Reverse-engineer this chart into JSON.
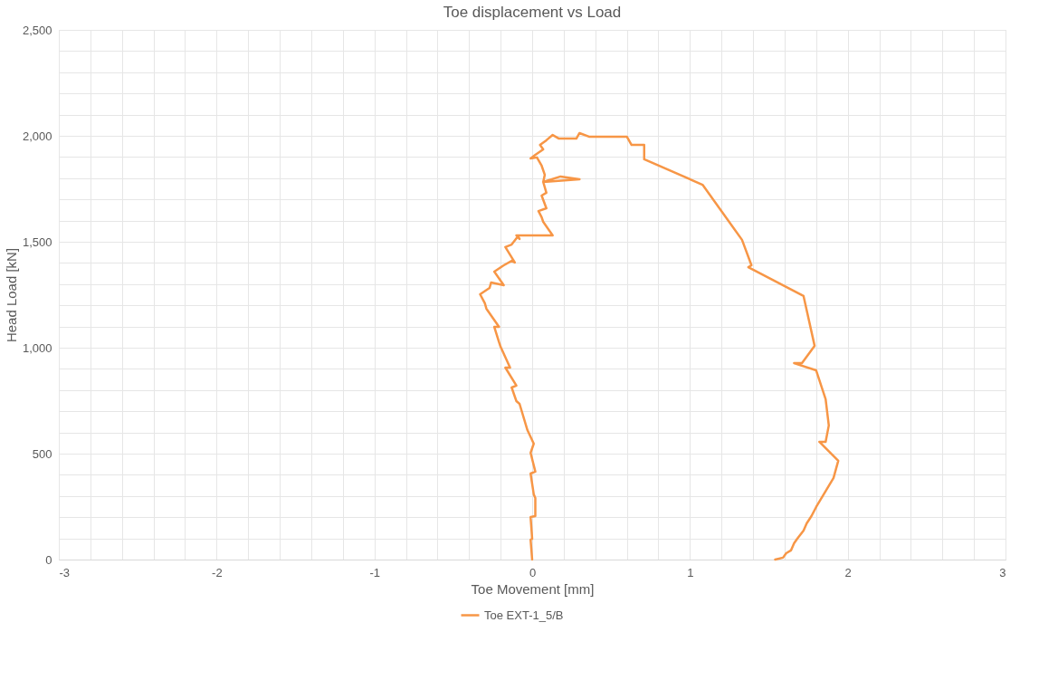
{
  "chart_data": {
    "type": "line",
    "title": "Toe displacement vs Load",
    "xlabel": "Toe Movement [mm]",
    "ylabel": "Head Load [kN]",
    "xlim": [
      -3,
      3
    ],
    "ylim": [
      0,
      2500
    ],
    "xticks": [
      -3,
      {
        "value": -2.8,
        "label": null
      },
      {
        "value": -2.6,
        "label": null
      },
      {
        "value": -2.4,
        "label": null
      },
      {
        "value": -2.2,
        "label": null
      },
      -2,
      {
        "value": -1.8,
        "label": null
      },
      {
        "value": -1.6,
        "label": null
      },
      {
        "value": -1.4,
        "label": null
      },
      {
        "value": -1.2,
        "label": null
      },
      -1,
      {
        "value": -0.8,
        "label": null
      },
      {
        "value": -0.6,
        "label": null
      },
      {
        "value": -0.4,
        "label": null
      },
      {
        "value": -0.2,
        "label": null
      },
      0,
      {
        "value": 0.2,
        "label": null
      },
      {
        "value": 0.4,
        "label": null
      },
      {
        "value": 0.6,
        "label": null
      },
      {
        "value": 0.8,
        "label": null
      },
      1,
      {
        "value": 1.2,
        "label": null
      },
      {
        "value": 1.4,
        "label": null
      },
      {
        "value": 1.6,
        "label": null
      },
      {
        "value": 1.8,
        "label": null
      },
      2,
      {
        "value": 2.2,
        "label": null
      },
      {
        "value": 2.4,
        "label": null
      },
      {
        "value": 2.6,
        "label": null
      },
      {
        "value": 2.8,
        "label": null
      },
      3
    ],
    "yticks": [
      0,
      {
        "value": 100,
        "label": null
      },
      {
        "value": 200,
        "label": null
      },
      {
        "value": 300,
        "label": null
      },
      {
        "value": 400,
        "label": null
      },
      500,
      {
        "value": 600,
        "label": null
      },
      {
        "value": 700,
        "label": null
      },
      {
        "value": 800,
        "label": null
      },
      {
        "value": 900,
        "label": null
      },
      {
        "value": 1000,
        "label": "1,000"
      },
      {
        "value": 1100,
        "label": null
      },
      {
        "value": 1200,
        "label": null
      },
      {
        "value": 1300,
        "label": null
      },
      {
        "value": 1400,
        "label": null
      },
      {
        "value": 1500,
        "label": "1,500"
      },
      {
        "value": 1600,
        "label": null
      },
      {
        "value": 1700,
        "label": null
      },
      {
        "value": 1800,
        "label": null
      },
      {
        "value": 1900,
        "label": null
      },
      {
        "value": 2000,
        "label": "2,000"
      },
      {
        "value": 2100,
        "label": null
      },
      {
        "value": 2200,
        "label": null
      },
      {
        "value": 2300,
        "label": null
      },
      {
        "value": 2400,
        "label": null
      },
      {
        "value": 2500,
        "label": "2,500"
      }
    ],
    "grid": true,
    "legend": "bottom",
    "marker": "none",
    "line_style": "solid",
    "series": [
      {
        "name": "Toe EXT-1_5/B",
        "color": "#f79646",
        "x": [
          0,
          -0.01,
          0,
          -0.01,
          0.02,
          0.02,
          0.01,
          -0.01,
          0.02,
          -0.01,
          0.01,
          -0.03,
          -0.08,
          -0.1,
          -0.13,
          -0.1,
          -0.17,
          -0.14,
          -0.2,
          -0.21,
          -0.24,
          -0.21,
          -0.29,
          -0.3,
          -0.33,
          -0.27,
          -0.26,
          -0.18,
          -0.24,
          -0.18,
          -0.13,
          -0.11,
          -0.17,
          -0.13,
          -0.09,
          -0.08,
          -0.1,
          0.13,
          0.07,
          0.06,
          0.04,
          0.09,
          0.06,
          0.09,
          0.07,
          0.18,
          0.3,
          0.07,
          0.08,
          0.06,
          0.03,
          -0.01,
          0.02,
          0.07,
          0.05,
          0.09,
          0.13,
          0.17,
          0.28,
          0.3,
          0.36,
          0.6,
          0.63,
          0.71,
          0.71,
          1.08,
          1.33,
          1.39,
          1.37,
          1.72,
          1.79,
          1.71,
          1.66,
          1.8,
          1.86,
          1.88,
          1.86,
          1.82,
          1.94,
          1.91,
          1.8,
          1.77,
          1.74,
          1.72,
          1.68,
          1.66,
          1.64,
          1.61,
          1.59,
          1.54
        ],
        "values": [
          0,
          94,
          98,
          201,
          205,
          291,
          308,
          406,
          415,
          504,
          547,
          611,
          735,
          748,
          812,
          821,
          906,
          906,
          1004,
          1026,
          1098,
          1098,
          1184,
          1210,
          1252,
          1282,
          1308,
          1295,
          1359,
          1389,
          1410,
          1402,
          1475,
          1487,
          1526,
          1513,
          1530,
          1530,
          1594,
          1616,
          1645,
          1658,
          1718,
          1731,
          1782,
          1808,
          1795,
          1782,
          1816,
          1859,
          1898,
          1893,
          1910,
          1936,
          1957,
          1979,
          2004,
          1987,
          1987,
          2013,
          1996,
          1996,
          1957,
          1957,
          1889,
          1769,
          1509,
          1389,
          1380,
          1244,
          1009,
          927,
          927,
          893,
          757,
          633,
          556,
          556,
          466,
          385,
          248,
          205,
          171,
          137,
          98,
          77,
          43,
          30,
          9,
          0
        ]
      }
    ]
  }
}
